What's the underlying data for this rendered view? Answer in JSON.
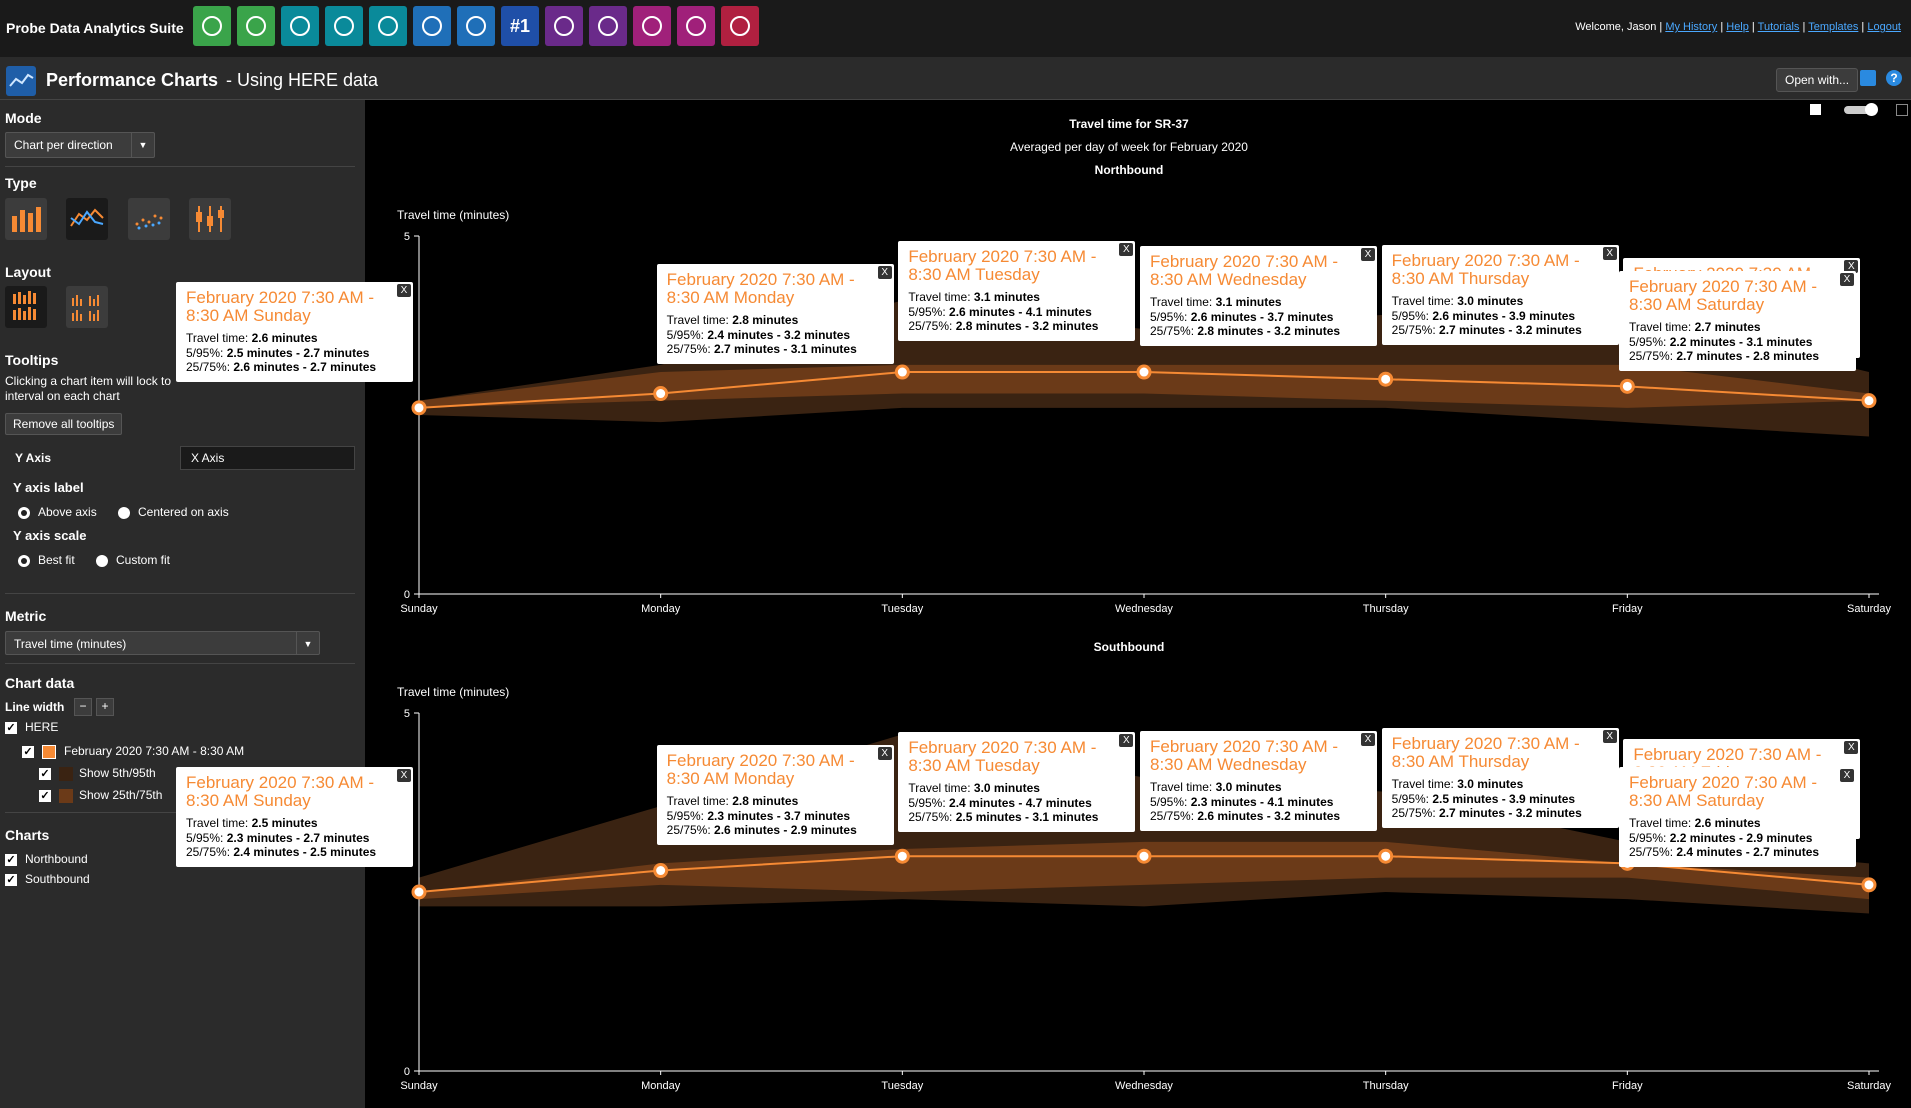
{
  "app": {
    "title": "Probe Data Analytics Suite",
    "welcome": "Welcome, Jason",
    "links": [
      "My History",
      "Help",
      "Tutorials",
      "Templates",
      "Logout"
    ]
  },
  "toolbar": [
    {
      "icon": "magnifier-icon",
      "color": "#3aa44a"
    },
    {
      "icon": "download-arrow-icon",
      "color": "#3aa44a"
    },
    {
      "icon": "bars-map-icon",
      "color": "#0a8a9a"
    },
    {
      "icon": "road-icon",
      "color": "#0a8a9a"
    },
    {
      "icon": "play-map-icon",
      "color": "#0a8a9a"
    },
    {
      "icon": "line-chart-icon",
      "color": "#1f6fb8"
    },
    {
      "icon": "list-icon",
      "color": "#1f6fb8"
    },
    {
      "icon": "ranking-icon",
      "color": "#1f4fa8",
      "text": "#1"
    },
    {
      "icon": "dollar-icon",
      "color": "#6a2a8a"
    },
    {
      "icon": "form-icon",
      "color": "#6a2a8a"
    },
    {
      "icon": "scatter-icon",
      "color": "#a0207a"
    },
    {
      "icon": "list-check-icon",
      "color": "#a0207a"
    },
    {
      "icon": "clock-map-icon",
      "color": "#b02040"
    }
  ],
  "header": {
    "title": "Performance Charts",
    "subtitle": "- Using HERE data",
    "open_with": "Open with..."
  },
  "sidebar": {
    "mode_label": "Mode",
    "mode_value": "Chart per direction",
    "type_label": "Type",
    "layout_label": "Layout",
    "tooltips_label": "Tooltips",
    "tooltips_desc_1": "Clicking a chart item will lock to",
    "tooltips_desc_2": "interval on each chart",
    "remove_tooltips": "Remove all tooltips",
    "tab_y": "Y Axis",
    "tab_x": "X Axis",
    "y_axis_label_title": "Y axis label",
    "y_axis_label_opt1": "Above axis",
    "y_axis_label_opt2": "Centered on axis",
    "y_axis_scale_title": "Y axis scale",
    "y_axis_scale_opt1": "Best fit",
    "y_axis_scale_opt2": "Custom fit",
    "metric_label": "Metric",
    "metric_value": "Travel time (minutes)",
    "chart_data_label": "Chart data",
    "line_width_label": "Line width",
    "here_label": "HERE",
    "series_label": "February 2020 7:30 AM - 8:30 AM",
    "show_5_95": "Show 5th/95th",
    "show_25_75": "Show 25th/75th",
    "charts_label": "Charts",
    "chart_nb": "Northbound",
    "chart_sb": "Southbound"
  },
  "chart_data": [
    {
      "type": "area",
      "title": "Travel time for SR-37",
      "subtitle": "Averaged per day of week for February 2020",
      "panel": "Northbound",
      "ylabel": "Travel time (minutes)",
      "ylim": [
        0,
        5
      ],
      "yticks": [
        "0",
        "5"
      ],
      "categories": [
        "Sunday",
        "Monday",
        "Tuesday",
        "Wednesday",
        "Thursday",
        "Friday",
        "Saturday"
      ],
      "series": [
        {
          "name": "February 2020 7:30 AM - 8:30 AM",
          "values": [
            2.6,
            2.8,
            3.1,
            3.1,
            3.0,
            2.9,
            2.7
          ]
        }
      ],
      "p5": [
        2.5,
        2.4,
        2.6,
        2.6,
        2.6,
        2.4,
        2.2
      ],
      "p95": [
        2.7,
        3.2,
        4.1,
        3.7,
        3.9,
        3.9,
        3.1
      ],
      "p25": [
        2.6,
        2.7,
        2.8,
        2.8,
        2.7,
        2.6,
        2.7
      ],
      "p75": [
        2.7,
        3.1,
        3.2,
        3.2,
        3.2,
        3.2,
        2.8
      ],
      "tooltip_title_prefix": "February 2020 7:30 AM - 8:30 AM",
      "tooltip_travel_label": "Travel time:",
      "tooltip_595_label": "5/95%:",
      "tooltip_2575_label": "25/75%:",
      "tooltip_unit": "minutes"
    },
    {
      "type": "area",
      "panel": "Southbound",
      "ylabel": "Travel time (minutes)",
      "ylim": [
        0,
        5
      ],
      "yticks": [
        "0",
        "5"
      ],
      "categories": [
        "Sunday",
        "Monday",
        "Tuesday",
        "Wednesday",
        "Thursday",
        "Friday",
        "Saturday"
      ],
      "series": [
        {
          "name": "February 2020 7:30 AM - 8:30 AM",
          "values": [
            2.5,
            2.8,
            3.0,
            3.0,
            3.0,
            2.9,
            2.6
          ]
        }
      ],
      "p5": [
        2.3,
        2.3,
        2.4,
        2.3,
        2.5,
        2.4,
        2.2
      ],
      "p95": [
        2.7,
        3.7,
        4.7,
        4.1,
        3.9,
        3.2,
        2.9
      ],
      "p25": [
        2.4,
        2.6,
        2.5,
        2.6,
        2.7,
        2.7,
        2.4
      ],
      "p75": [
        2.5,
        2.9,
        3.1,
        3.2,
        3.2,
        2.9,
        2.7
      ],
      "tooltip_title_prefix": "February 2020 7:30 AM - 8:30 AM",
      "tooltip_travel_label": "Travel time:",
      "tooltip_595_label": "5/95%:",
      "tooltip_2575_label": "25/75%:",
      "tooltip_unit": "minutes"
    }
  ],
  "colors": {
    "line": "#f68a34",
    "band_outer": "#3a2312",
    "band_inner": "#6b3a18",
    "tooltip_title": "#f68a34"
  }
}
